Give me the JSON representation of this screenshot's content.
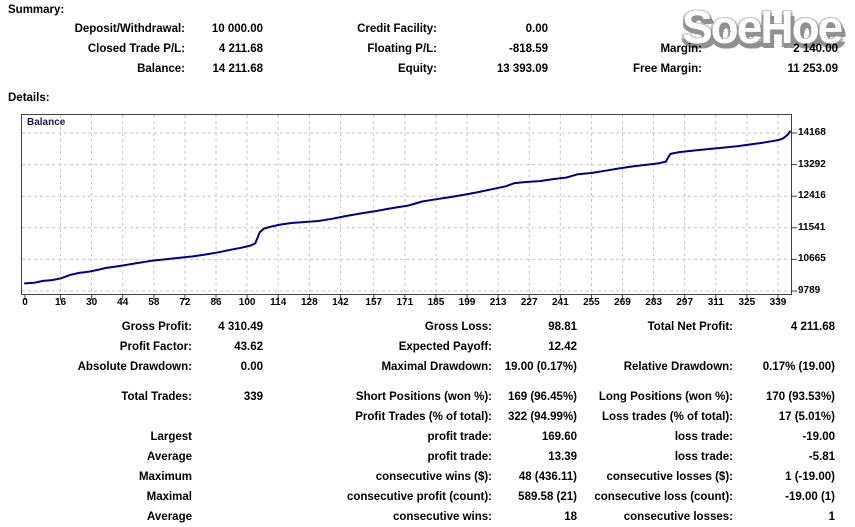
{
  "summary": {
    "heading": "Summary:",
    "rows": [
      [
        "Deposit/Withdrawal:",
        "10 000.00",
        "Credit Facility:",
        "0.00",
        "",
        ""
      ],
      [
        "Closed Trade P/L:",
        "4 211.68",
        "Floating P/L:",
        "-818.59",
        "Margin:",
        "2 140.00"
      ],
      [
        "Balance:",
        "14 211.68",
        "Equity:",
        "13 393.09",
        "Free Margin:",
        "11 253.09"
      ]
    ]
  },
  "details": {
    "heading": "Details:"
  },
  "watermark": {
    "text": "SoeHoe",
    "fill": "#fdfdfd",
    "shadow": "#909090"
  },
  "chart_data": {
    "type": "line",
    "title": "",
    "legend": "Balance",
    "xlabel": "",
    "ylabel": "",
    "x_range": [
      0,
      339
    ],
    "y_range": [
      9789,
      14168
    ],
    "x_ticks": [
      0,
      16,
      30,
      44,
      58,
      72,
      86,
      100,
      114,
      128,
      142,
      157,
      171,
      185,
      199,
      213,
      227,
      241,
      255,
      269,
      283,
      297,
      311,
      325,
      339
    ],
    "y_ticks": [
      9789,
      10665,
      11541,
      12416,
      13292,
      14168
    ],
    "grid": true,
    "legend_position": "top-left",
    "line_color": "#000080",
    "grid_color": "#c6c6c6",
    "frame_color": "#404040",
    "series": [
      {
        "name": "Balance",
        "points": [
          [
            0,
            10000
          ],
          [
            4,
            10015
          ],
          [
            8,
            10070
          ],
          [
            12,
            10090
          ],
          [
            16,
            10140
          ],
          [
            20,
            10235
          ],
          [
            24,
            10290
          ],
          [
            28,
            10320
          ],
          [
            32,
            10370
          ],
          [
            36,
            10430
          ],
          [
            40,
            10465
          ],
          [
            44,
            10505
          ],
          [
            50,
            10565
          ],
          [
            56,
            10625
          ],
          [
            62,
            10665
          ],
          [
            68,
            10705
          ],
          [
            74,
            10745
          ],
          [
            80,
            10800
          ],
          [
            86,
            10865
          ],
          [
            91,
            10930
          ],
          [
            96,
            10990
          ],
          [
            100,
            11050
          ],
          [
            102,
            11110
          ],
          [
            103,
            11250
          ],
          [
            104,
            11420
          ],
          [
            106,
            11520
          ],
          [
            109,
            11575
          ],
          [
            113,
            11630
          ],
          [
            118,
            11675
          ],
          [
            124,
            11700
          ],
          [
            130,
            11730
          ],
          [
            136,
            11790
          ],
          [
            142,
            11865
          ],
          [
            149,
            11940
          ],
          [
            156,
            12010
          ],
          [
            163,
            12090
          ],
          [
            170,
            12160
          ],
          [
            176,
            12270
          ],
          [
            182,
            12330
          ],
          [
            188,
            12390
          ],
          [
            194,
            12450
          ],
          [
            200,
            12520
          ],
          [
            207,
            12610
          ],
          [
            213,
            12690
          ],
          [
            217,
            12780
          ],
          [
            222,
            12810
          ],
          [
            228,
            12835
          ],
          [
            234,
            12890
          ],
          [
            240,
            12935
          ],
          [
            245,
            13025
          ],
          [
            251,
            13060
          ],
          [
            257,
            13120
          ],
          [
            263,
            13185
          ],
          [
            269,
            13240
          ],
          [
            275,
            13285
          ],
          [
            281,
            13330
          ],
          [
            284,
            13375
          ],
          [
            285,
            13490
          ],
          [
            286,
            13590
          ],
          [
            290,
            13640
          ],
          [
            296,
            13680
          ],
          [
            302,
            13720
          ],
          [
            309,
            13760
          ],
          [
            316,
            13805
          ],
          [
            322,
            13855
          ],
          [
            327,
            13900
          ],
          [
            331,
            13940
          ],
          [
            334,
            13975
          ],
          [
            336,
            14020
          ],
          [
            338,
            14120
          ],
          [
            339,
            14211.68
          ]
        ]
      }
    ]
  },
  "stats": {
    "spacer_after": 3,
    "rows": [
      [
        "Gross Profit:",
        "4 310.49",
        "Gross Loss:",
        "98.81",
        "Total Net Profit:",
        "4 211.68"
      ],
      [
        "Profit Factor:",
        "43.62",
        "Expected Payoff:",
        "12.42",
        "",
        ""
      ],
      [
        "Absolute Drawdown:",
        "0.00",
        "Maximal Drawdown:",
        "19.00 (0.17%)",
        "Relative Drawdown:",
        "0.17% (19.00)"
      ],
      [
        "Total Trades:",
        "339",
        "Short Positions (won %):",
        "169 (96.45%)",
        "Long Positions (won %):",
        "170 (93.53%)"
      ],
      [
        "",
        "",
        "Profit Trades (% of total):",
        "322 (94.99%)",
        "Loss trades (% of total):",
        "17 (5.01%)"
      ],
      [
        "Largest",
        "",
        "profit trade:",
        "169.60",
        "loss trade:",
        "-19.00"
      ],
      [
        "Average",
        "",
        "profit trade:",
        "13.39",
        "loss trade:",
        "-5.81"
      ],
      [
        "Maximum",
        "",
        "consecutive wins ($):",
        "48 (436.11)",
        "consecutive losses ($):",
        "1 (-19.00)"
      ],
      [
        "Maximal",
        "",
        "consecutive profit (count):",
        "589.58 (21)",
        "consecutive loss (count):",
        "-19.00 (1)"
      ],
      [
        "Average",
        "",
        "consecutive wins:",
        "18",
        "consecutive losses:",
        "1"
      ]
    ]
  }
}
